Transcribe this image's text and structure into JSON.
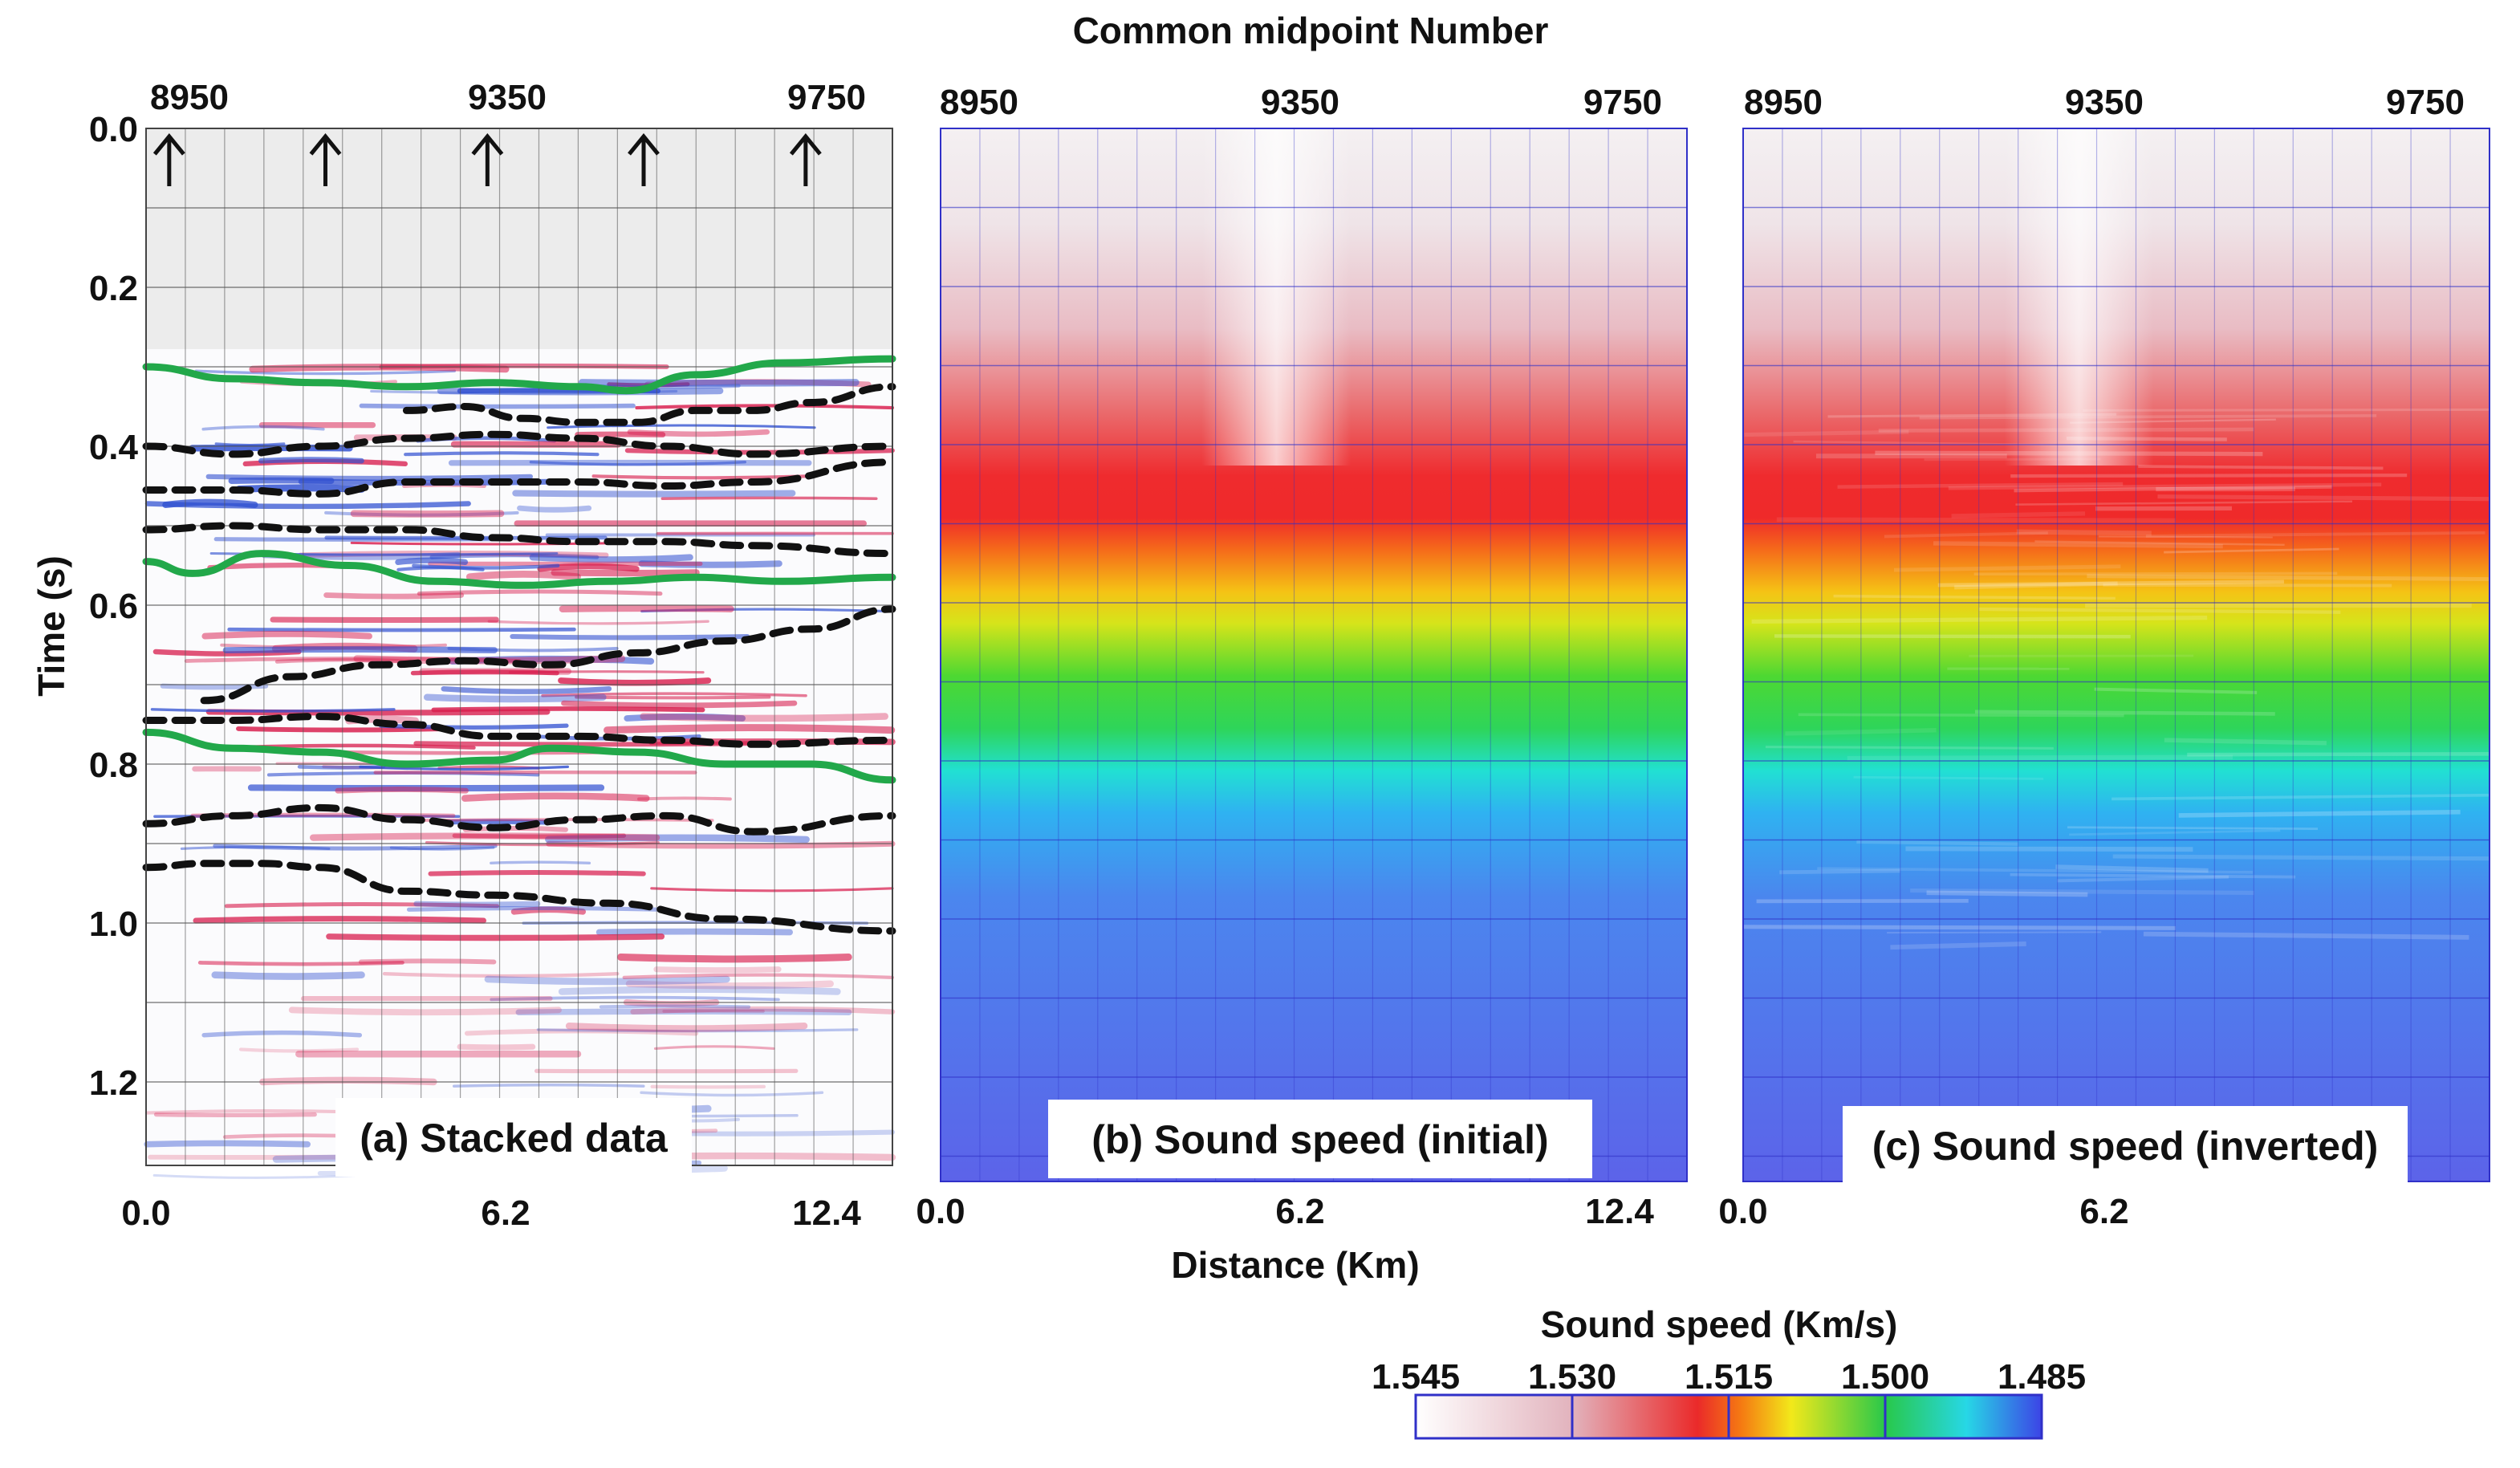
{
  "figure": {
    "top_title": "Common midpoint Number",
    "x_title": "Distance (Km)",
    "y_title": "Time (s)"
  },
  "colors": {
    "trough": "#d81e4e",
    "peak": "#2f4fd0",
    "green_horizon": "#22a84a",
    "black_horizon": "#111111",
    "grid_a": "#555555",
    "grid_bc": "#3030c8"
  },
  "chart_data": [
    {
      "id": "a",
      "type": "heatmap",
      "label": "(a) Stacked data",
      "top_axis": {
        "label": "Common midpoint Number",
        "ticks": [
          "8950",
          "9350",
          "9750"
        ]
      },
      "x_axis": {
        "label": "Distance (Km)",
        "ticks": [
          "0.0",
          "6.2",
          "12.4"
        ],
        "range": [
          0,
          12.9
        ]
      },
      "y_axis": {
        "label": "Time (s)",
        "ticks": [
          "0.0",
          "0.2",
          "0.4",
          "0.6",
          "0.8",
          "1.0",
          "1.2"
        ],
        "range": [
          0,
          1.33
        ]
      },
      "arrows_at_km": [
        0.4,
        3.1,
        5.9,
        8.6,
        11.4
      ],
      "green_horizons": [
        {
          "x": [
            0,
            1.5,
            3,
            4.5,
            6,
            7.5,
            8.3,
            9.5,
            11,
            12.9
          ],
          "t": [
            0.3,
            0.315,
            0.32,
            0.325,
            0.32,
            0.325,
            0.33,
            0.31,
            0.295,
            0.29
          ]
        },
        {
          "x": [
            0,
            0.8,
            2,
            3.5,
            5,
            6.5,
            8,
            9.5,
            11,
            12.9
          ],
          "t": [
            0.545,
            0.56,
            0.535,
            0.55,
            0.57,
            0.575,
            0.57,
            0.565,
            0.57,
            0.565
          ]
        },
        {
          "x": [
            0,
            1.5,
            3,
            4.5,
            6,
            7,
            8.5,
            10,
            11.5,
            12.9
          ],
          "t": [
            0.76,
            0.78,
            0.785,
            0.8,
            0.795,
            0.78,
            0.785,
            0.8,
            0.8,
            0.82
          ]
        }
      ],
      "black_horizons": [
        {
          "x": [
            4.5,
            5.5,
            6.5,
            7.5,
            8.5,
            9.5,
            10.5,
            11.5,
            12.9
          ],
          "t": [
            0.355,
            0.35,
            0.365,
            0.37,
            0.37,
            0.355,
            0.355,
            0.345,
            0.325
          ]
        },
        {
          "x": [
            0,
            1.5,
            3,
            4.5,
            6,
            7.5,
            9,
            10.5,
            12.9
          ],
          "t": [
            0.4,
            0.41,
            0.4,
            0.39,
            0.385,
            0.39,
            0.4,
            0.41,
            0.4
          ]
        },
        {
          "x": [
            0,
            1.5,
            3,
            4.5,
            6,
            7.5,
            9,
            10.5,
            12.9
          ],
          "t": [
            0.455,
            0.455,
            0.46,
            0.445,
            0.445,
            0.445,
            0.45,
            0.445,
            0.42
          ]
        },
        {
          "x": [
            0,
            1.5,
            3,
            4.5,
            6,
            7.5,
            9,
            10.5,
            12.9
          ],
          "t": [
            0.505,
            0.5,
            0.505,
            0.505,
            0.515,
            0.52,
            0.52,
            0.525,
            0.535
          ]
        },
        {
          "x": [
            1,
            2.5,
            4,
            5.5,
            7,
            8.5,
            10,
            11.5,
            12.9
          ],
          "t": [
            0.72,
            0.69,
            0.675,
            0.67,
            0.675,
            0.66,
            0.645,
            0.63,
            0.605
          ]
        },
        {
          "x": [
            0,
            1.5,
            3,
            4.5,
            6,
            7.5,
            9,
            10.5,
            12.9
          ],
          "t": [
            0.745,
            0.745,
            0.74,
            0.75,
            0.765,
            0.765,
            0.77,
            0.775,
            0.77
          ]
        },
        {
          "x": [
            0,
            1.5,
            3,
            4.5,
            6,
            7.5,
            9,
            10.5,
            12.9
          ],
          "t": [
            0.875,
            0.865,
            0.855,
            0.87,
            0.88,
            0.87,
            0.865,
            0.885,
            0.865
          ]
        },
        {
          "x": [
            0,
            1,
            2,
            3,
            4.5,
            6,
            8,
            10,
            12.9
          ],
          "t": [
            0.93,
            0.925,
            0.925,
            0.93,
            0.96,
            0.965,
            0.975,
            0.995,
            1.01
          ]
        }
      ]
    },
    {
      "id": "b",
      "type": "heatmap",
      "label": "(b) Sound speed (initial)",
      "top_axis": {
        "ticks": [
          "8950",
          "9350",
          "9750"
        ]
      },
      "x_axis": {
        "ticks": [
          "0.0",
          "6.2",
          "12.4"
        ],
        "range": [
          0,
          12.9
        ]
      },
      "y_axis": {
        "range": [
          0,
          1.33
        ]
      },
      "velocity_profile_t": [
        0,
        0.15,
        0.3,
        0.4,
        0.5,
        0.6,
        0.7,
        0.8,
        0.9,
        1.1,
        1.33
      ],
      "velocity_profile_v": [
        1.545,
        1.54,
        1.53,
        1.52,
        1.515,
        1.508,
        1.5,
        1.494,
        1.49,
        1.487,
        1.485
      ]
    },
    {
      "id": "c",
      "type": "heatmap",
      "label": "(c) Sound speed (inverted)",
      "top_axis": {
        "ticks": [
          "8950",
          "9350",
          "9750"
        ]
      },
      "x_axis": {
        "ticks": [
          "0.0",
          "6.2"
        ],
        "range": [
          0,
          12.9
        ]
      },
      "y_axis": {
        "range": [
          0,
          1.33
        ]
      },
      "velocity_profile_t": [
        0,
        0.15,
        0.3,
        0.4,
        0.5,
        0.6,
        0.7,
        0.8,
        0.9,
        1.1,
        1.33
      ],
      "velocity_profile_v": [
        1.545,
        1.54,
        1.53,
        1.52,
        1.515,
        1.508,
        1.5,
        1.494,
        1.49,
        1.487,
        1.485
      ]
    }
  ],
  "colorbar": {
    "title": "Sound speed (Km/s)",
    "ticks": [
      "1.545",
      "1.530",
      "1.515",
      "1.500",
      "1.485"
    ],
    "range": [
      1.545,
      1.485
    ]
  }
}
